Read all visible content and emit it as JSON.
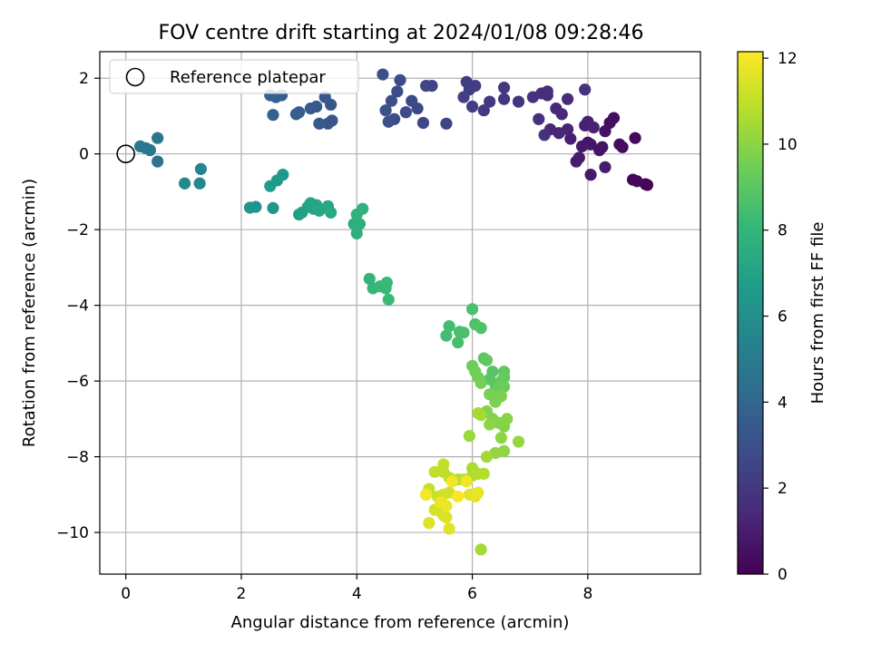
{
  "chart_data": {
    "type": "scatter",
    "title": "FOV centre drift starting at 2024/01/08 09:28:46",
    "xlabel": "Angular distance from reference (arcmin)",
    "ylabel": "Rotation from reference (arcmin)",
    "xlim": [
      -0.45,
      9.95
    ],
    "ylim": [
      -11.1,
      2.7
    ],
    "x_ticks": [
      0,
      2,
      4,
      6,
      8
    ],
    "y_ticks": [
      2,
      0,
      -2,
      -4,
      -6,
      -8,
      -10
    ],
    "grid": true,
    "legend": {
      "placement": "top-left",
      "entries": [
        "Reference platepar"
      ]
    },
    "reference_point": {
      "x": 0,
      "y": 0
    },
    "colorbar": {
      "label": "Hours from first FF file",
      "min": 0,
      "max": 12.15,
      "ticks": [
        0,
        2,
        4,
        6,
        8,
        10,
        12
      ],
      "colormap": "viridis",
      "stops": [
        "#440154",
        "#482878",
        "#3e4989",
        "#31688e",
        "#26828e",
        "#1f9e89",
        "#35b779",
        "#6ece58",
        "#b5de2b",
        "#fde725"
      ]
    },
    "series": [
      {
        "points": [
          [
            9.03,
            -0.82,
            0.05
          ],
          [
            9.0,
            -0.8,
            0.1
          ],
          [
            8.78,
            -0.68,
            0.2
          ],
          [
            8.85,
            -0.72,
            0.25
          ],
          [
            8.82,
            0.42,
            0.3
          ],
          [
            8.6,
            0.18,
            0.35
          ],
          [
            8.55,
            0.25,
            0.4
          ],
          [
            8.45,
            0.95,
            0.45
          ],
          [
            8.38,
            0.82,
            0.5
          ],
          [
            8.3,
            0.6,
            0.55
          ],
          [
            8.25,
            0.18,
            0.6
          ],
          [
            8.2,
            0.1,
            0.65
          ],
          [
            8.05,
            0.25,
            0.7
          ],
          [
            8.0,
            0.3,
            0.75
          ],
          [
            7.9,
            0.2,
            0.8
          ],
          [
            8.05,
            -0.55,
            0.85
          ],
          [
            7.85,
            -0.1,
            0.9
          ],
          [
            7.8,
            -0.2,
            0.95
          ],
          [
            8.3,
            -0.35,
            1.0
          ],
          [
            7.7,
            0.4,
            1.05
          ],
          [
            7.95,
            0.75,
            1.1
          ],
          [
            8.0,
            0.85,
            1.15
          ],
          [
            8.1,
            0.7,
            1.2
          ],
          [
            7.65,
            0.65,
            1.25
          ],
          [
            7.5,
            0.55,
            1.3
          ],
          [
            7.35,
            0.65,
            1.35
          ],
          [
            7.45,
            1.2,
            1.4
          ],
          [
            7.55,
            1.05,
            1.45
          ],
          [
            7.65,
            1.45,
            1.5
          ],
          [
            7.3,
            1.55,
            1.55
          ],
          [
            7.2,
            1.6,
            1.6
          ],
          [
            7.3,
            1.65,
            1.65
          ],
          [
            7.15,
            0.92,
            1.7
          ],
          [
            7.25,
            0.5,
            1.75
          ],
          [
            7.95,
            1.7,
            1.8
          ],
          [
            7.05,
            1.5,
            1.85
          ],
          [
            6.8,
            1.38,
            1.9
          ],
          [
            6.55,
            1.75,
            1.95
          ],
          [
            6.55,
            1.45,
            2.0
          ],
          [
            6.3,
            1.38,
            2.05
          ],
          [
            6.2,
            1.15,
            2.1
          ],
          [
            6.05,
            1.8,
            2.15
          ],
          [
            6.0,
            1.25,
            2.2
          ],
          [
            5.95,
            1.7,
            2.25
          ],
          [
            5.9,
            1.9,
            2.3
          ],
          [
            5.85,
            1.5,
            2.35
          ],
          [
            5.55,
            0.8,
            2.45
          ],
          [
            5.3,
            1.8,
            2.5
          ],
          [
            5.2,
            1.8,
            2.55
          ],
          [
            5.15,
            0.82,
            2.6
          ],
          [
            5.05,
            1.2,
            2.65
          ],
          [
            4.95,
            1.4,
            2.7
          ],
          [
            4.85,
            1.1,
            2.75
          ],
          [
            4.75,
            1.95,
            2.8
          ],
          [
            4.7,
            1.65,
            2.85
          ],
          [
            4.65,
            0.92,
            2.9
          ],
          [
            4.6,
            1.4,
            2.95
          ],
          [
            4.55,
            0.85,
            3.0
          ],
          [
            4.5,
            1.15,
            3.05
          ],
          [
            4.45,
            2.1,
            3.1
          ],
          [
            3.57,
            0.88,
            3.2
          ],
          [
            3.5,
            0.8,
            3.25
          ],
          [
            3.55,
            1.3,
            3.3
          ],
          [
            3.45,
            1.5,
            3.35
          ],
          [
            3.35,
            0.8,
            3.4
          ],
          [
            3.3,
            1.25,
            3.45
          ],
          [
            3.2,
            1.2,
            3.5
          ],
          [
            3.0,
            1.1,
            3.55
          ],
          [
            2.95,
            1.05,
            3.6
          ],
          [
            2.7,
            1.55,
            3.65
          ],
          [
            2.6,
            1.5,
            3.7
          ],
          [
            2.5,
            1.55,
            3.75
          ],
          [
            2.55,
            1.03,
            3.8
          ],
          [
            0.55,
            -0.2,
            4.6
          ],
          [
            0.55,
            0.42,
            4.7
          ],
          [
            0.42,
            0.1,
            4.8
          ],
          [
            0.35,
            0.15,
            4.9
          ],
          [
            0.25,
            0.2,
            5.0
          ],
          [
            1.3,
            -0.4,
            5.5
          ],
          [
            1.28,
            -0.78,
            5.6
          ],
          [
            1.02,
            -0.78,
            5.7
          ],
          [
            2.25,
            -1.4,
            6.2
          ],
          [
            2.15,
            -1.42,
            6.3
          ],
          [
            2.55,
            -1.43,
            6.4
          ],
          [
            2.72,
            -0.55,
            6.5
          ],
          [
            2.62,
            -0.7,
            6.6
          ],
          [
            2.5,
            -0.85,
            6.7
          ],
          [
            3.0,
            -1.6,
            6.8
          ],
          [
            3.05,
            -1.55,
            6.9
          ],
          [
            3.15,
            -1.4,
            7.0
          ],
          [
            3.2,
            -1.3,
            7.05
          ],
          [
            3.25,
            -1.45,
            7.1
          ],
          [
            3.3,
            -1.35,
            7.15
          ],
          [
            3.35,
            -1.5,
            7.2
          ],
          [
            3.5,
            -1.38,
            7.3
          ],
          [
            3.55,
            -1.55,
            7.4
          ],
          [
            3.95,
            -1.85,
            7.6
          ],
          [
            4.0,
            -2.1,
            7.65
          ],
          [
            4.05,
            -1.85,
            7.7
          ],
          [
            4.0,
            -1.6,
            7.75
          ],
          [
            4.1,
            -1.45,
            7.8
          ],
          [
            4.22,
            -3.3,
            8.0
          ],
          [
            4.28,
            -3.55,
            8.05
          ],
          [
            4.4,
            -3.5,
            8.1
          ],
          [
            4.5,
            -3.55,
            8.15
          ],
          [
            4.52,
            -3.4,
            8.2
          ],
          [
            4.55,
            -3.85,
            8.25
          ],
          [
            5.55,
            -4.8,
            8.4
          ],
          [
            5.6,
            -4.55,
            8.45
          ],
          [
            5.75,
            -4.98,
            8.5
          ],
          [
            5.78,
            -4.7,
            8.55
          ],
          [
            5.85,
            -4.72,
            8.6
          ],
          [
            6.0,
            -4.1,
            8.65
          ],
          [
            6.05,
            -4.5,
            8.7
          ],
          [
            6.15,
            -4.6,
            8.75
          ],
          [
            6.35,
            -5.75,
            8.9
          ],
          [
            6.3,
            -5.95,
            8.95
          ],
          [
            6.4,
            -6.1,
            9.0
          ],
          [
            6.2,
            -5.4,
            9.05
          ],
          [
            6.25,
            -5.45,
            9.1
          ],
          [
            6.55,
            -5.75,
            9.15
          ],
          [
            6.55,
            -5.9,
            9.2
          ],
          [
            6.5,
            -6.0,
            9.25
          ],
          [
            6.45,
            -6.2,
            9.3
          ],
          [
            6.55,
            -6.15,
            9.35
          ],
          [
            6.0,
            -5.6,
            9.4
          ],
          [
            6.05,
            -5.75,
            9.45
          ],
          [
            6.1,
            -5.9,
            9.5
          ],
          [
            6.15,
            -6.05,
            9.55
          ],
          [
            6.3,
            -6.35,
            9.6
          ],
          [
            6.4,
            -6.55,
            9.65
          ],
          [
            6.5,
            -6.4,
            9.7
          ],
          [
            6.25,
            -6.8,
            9.75
          ],
          [
            6.35,
            -7.0,
            9.8
          ],
          [
            6.45,
            -7.1,
            9.85
          ],
          [
            6.55,
            -7.2,
            9.9
          ],
          [
            6.6,
            -7.0,
            9.95
          ],
          [
            6.3,
            -7.15,
            10.0
          ],
          [
            6.5,
            -7.5,
            10.05
          ],
          [
            6.55,
            -7.85,
            10.1
          ],
          [
            6.4,
            -7.9,
            10.15
          ],
          [
            6.8,
            -7.6,
            10.2
          ],
          [
            5.95,
            -7.45,
            10.3
          ],
          [
            6.25,
            -8.0,
            10.4
          ],
          [
            6.15,
            -6.9,
            10.45
          ],
          [
            6.1,
            -6.85,
            10.5
          ],
          [
            6.0,
            -8.3,
            10.6
          ],
          [
            6.0,
            -8.5,
            10.65
          ],
          [
            6.1,
            -8.45,
            10.7
          ],
          [
            6.2,
            -8.45,
            10.75
          ],
          [
            5.85,
            -8.6,
            10.8
          ],
          [
            5.75,
            -8.6,
            10.85
          ],
          [
            5.6,
            -8.55,
            10.9
          ],
          [
            5.5,
            -8.4,
            10.95
          ],
          [
            5.35,
            -8.4,
            11.0
          ],
          [
            5.5,
            -8.2,
            11.05
          ],
          [
            5.25,
            -8.85,
            11.1
          ],
          [
            5.2,
            -9.0,
            11.15
          ],
          [
            5.4,
            -9.05,
            11.2
          ],
          [
            5.5,
            -9.0,
            11.25
          ],
          [
            5.6,
            -8.95,
            11.3
          ],
          [
            5.35,
            -9.4,
            11.35
          ],
          [
            5.45,
            -9.45,
            11.4
          ],
          [
            5.5,
            -9.55,
            11.45
          ],
          [
            5.55,
            -9.6,
            11.5
          ],
          [
            5.25,
            -9.75,
            11.55
          ],
          [
            5.6,
            -9.9,
            11.6
          ],
          [
            5.95,
            -9.0,
            11.65
          ],
          [
            6.05,
            -9.05,
            11.7
          ],
          [
            6.1,
            -8.95,
            11.75
          ],
          [
            5.55,
            -9.3,
            11.8
          ],
          [
            5.45,
            -9.2,
            11.85
          ],
          [
            5.65,
            -8.65,
            11.9
          ],
          [
            5.9,
            -8.65,
            11.95
          ],
          [
            5.2,
            -9.0,
            12.0
          ],
          [
            5.75,
            -9.05,
            12.05
          ],
          [
            6.15,
            -10.45,
            10.45
          ]
        ]
      }
    ]
  }
}
